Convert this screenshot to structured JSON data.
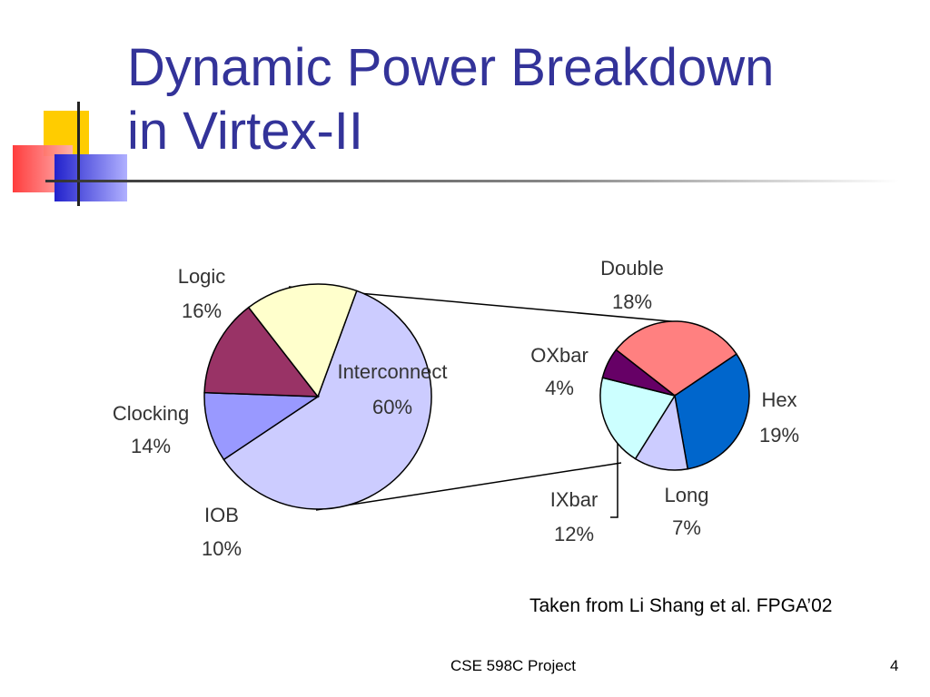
{
  "slide": {
    "title_line1": "Dynamic Power Breakdown",
    "title_line2": "in Virtex-II",
    "source": "Taken from Li Shang et al. FPGA’02",
    "footer": "CSE 598C Project",
    "page_number": "4"
  },
  "colors": {
    "title": "#333399",
    "deco_yellow": "#ffcc00",
    "deco_red": "#ff3333",
    "deco_blue": "#3333cc"
  },
  "chart_data": [
    {
      "type": "pie",
      "slices": [
        {
          "label": "Interconnect",
          "percent_label": "60%",
          "value": 60,
          "color": "#ccccff"
        },
        {
          "label": "IOB",
          "percent_label": "10%",
          "value": 10,
          "color": "#9999ff"
        },
        {
          "label": "Clocking",
          "percent_label": "14%",
          "value": 14,
          "color": "#993366"
        },
        {
          "label": "Logic",
          "percent_label": "16%",
          "value": 16,
          "color": "#ffffcc"
        }
      ]
    },
    {
      "type": "pie",
      "slices": [
        {
          "label": "Double",
          "percent_label": "18%",
          "value": 18,
          "color": "#ff8080"
        },
        {
          "label": "Hex",
          "percent_label": "19%",
          "value": 19,
          "color": "#0066cc"
        },
        {
          "label": "Long",
          "percent_label": "7%",
          "value": 7,
          "color": "#ccccff"
        },
        {
          "label": "IXbar",
          "percent_label": "12%",
          "value": 12,
          "color": "#ccffff"
        },
        {
          "label": "OXbar",
          "percent_label": "4%",
          "value": 4,
          "color": "#660066"
        }
      ]
    }
  ]
}
